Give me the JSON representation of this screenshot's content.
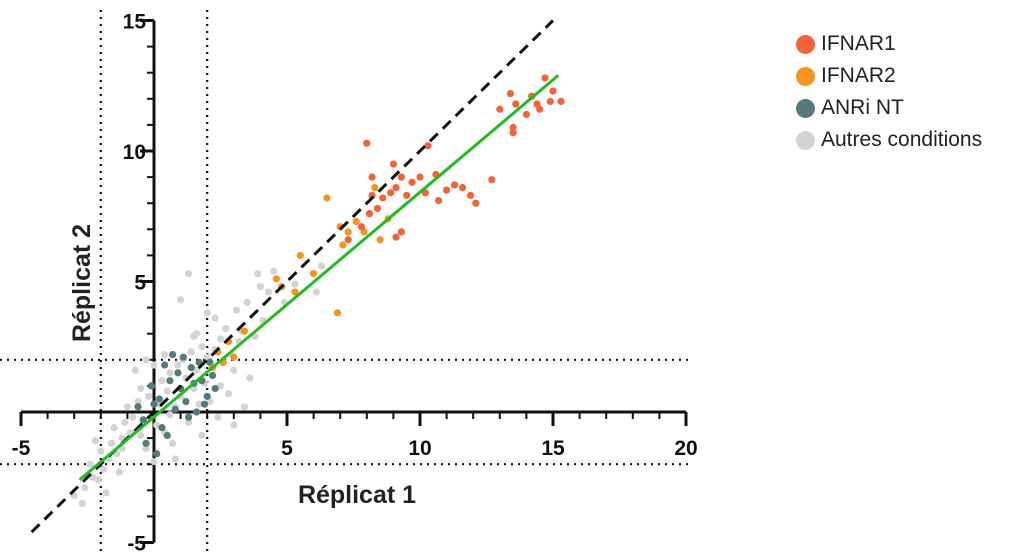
{
  "chart_data": {
    "type": "scatter",
    "xlabel": "Réplicat 1",
    "ylabel": "Réplicat 2",
    "xlim": [
      -5,
      20
    ],
    "ylim": [
      -5,
      15
    ],
    "x_ticks": [
      -5,
      0,
      5,
      10,
      15,
      20
    ],
    "x_tick_labels": [
      "-5",
      "",
      "5",
      "10",
      "15",
      "20"
    ],
    "y_ticks": [
      -5,
      0,
      5,
      10,
      15
    ],
    "y_tick_labels": [
      "-5",
      "",
      "5",
      "10",
      "15"
    ],
    "threshold_lines": {
      "x": [
        -2,
        2
      ],
      "y": [
        -2,
        2
      ]
    },
    "identity_line": {
      "slope": 1,
      "intercept": 0,
      "color": "#111111",
      "style": "dashed"
    },
    "fit_line": {
      "x": [
        -2.8,
        15.2
      ],
      "y": [
        -2.6,
        12.9
      ],
      "color": "#22bb22"
    },
    "series": [
      {
        "name": "Autres conditions",
        "color": "#d3d3d3",
        "points": [
          [
            -3.0,
            -3.2
          ],
          [
            -2.6,
            -2.9
          ],
          [
            -2.3,
            -2.5
          ],
          [
            -2.1,
            -2.6
          ],
          [
            -2.4,
            -2.0
          ],
          [
            -1.9,
            -2.2
          ],
          [
            -1.7,
            -1.8
          ],
          [
            -2.0,
            -1.5
          ],
          [
            -1.6,
            -1.2
          ],
          [
            -1.4,
            -1.6
          ],
          [
            -1.2,
            -1.0
          ],
          [
            -1.5,
            -0.6
          ],
          [
            -1.1,
            -0.4
          ],
          [
            -0.9,
            -0.8
          ],
          [
            -0.8,
            -0.2
          ],
          [
            -1.0,
            0.2
          ],
          [
            -0.6,
            0.4
          ],
          [
            -0.4,
            -0.3
          ],
          [
            -0.2,
            0.6
          ],
          [
            -0.5,
            0.9
          ],
          [
            -0.1,
            1.0
          ],
          [
            0.1,
            -0.5
          ],
          [
            0.2,
            0.3
          ],
          [
            0.3,
            1.2
          ],
          [
            0.5,
            0.8
          ],
          [
            0.4,
            -0.8
          ],
          [
            0.6,
            1.5
          ],
          [
            0.8,
            0.2
          ],
          [
            0.9,
            1.8
          ],
          [
            1.0,
            0.6
          ],
          [
            1.2,
            1.3
          ],
          [
            1.1,
            2.0
          ],
          [
            1.3,
            -0.4
          ],
          [
            1.5,
            0.9
          ],
          [
            1.4,
            2.3
          ],
          [
            1.6,
            1.6
          ],
          [
            1.7,
            0.3
          ],
          [
            1.8,
            2.5
          ],
          [
            1.9,
            1.1
          ],
          [
            2.0,
            2.1
          ],
          [
            2.1,
            0.4
          ],
          [
            2.2,
            1.4
          ],
          [
            2.3,
            2.4
          ],
          [
            2.4,
            -0.2
          ],
          [
            2.5,
            1.0
          ],
          [
            2.6,
            1.9
          ],
          [
            2.8,
            0.7
          ],
          [
            3.0,
            1.6
          ],
          [
            3.2,
            2.7
          ],
          [
            3.0,
            -0.5
          ],
          [
            3.4,
            0.2
          ],
          [
            3.6,
            1.3
          ],
          [
            2.7,
            3.2
          ],
          [
            2.3,
            3.6
          ],
          [
            2.0,
            3.8
          ],
          [
            1.6,
            3.0
          ],
          [
            3.8,
            2.9
          ],
          [
            3.1,
            3.9
          ],
          [
            3.5,
            4.2
          ],
          [
            4.0,
            4.8
          ],
          [
            4.3,
            4.6
          ],
          [
            3.9,
            5.3
          ],
          [
            4.5,
            5.4
          ],
          [
            4.9,
            4.2
          ],
          [
            5.3,
            4.9
          ],
          [
            6.3,
            5.6
          ],
          [
            6.1,
            4.6
          ],
          [
            1.3,
            5.3
          ],
          [
            1.0,
            4.3
          ],
          [
            -1.3,
            -2.3
          ],
          [
            -1.8,
            -3.1
          ],
          [
            -2.7,
            -3.5
          ],
          [
            -0.3,
            -1.4
          ],
          [
            0.0,
            -1.9
          ],
          [
            0.7,
            -1.2
          ],
          [
            1.8,
            -0.9
          ],
          [
            -0.7,
            1.6
          ],
          [
            0.0,
            1.8
          ],
          [
            0.4,
            2.2
          ],
          [
            -0.3,
            2.0
          ],
          [
            4.1,
            3.5
          ],
          [
            -2.2,
            -1.1
          ],
          [
            0.8,
            -1.8
          ],
          [
            2.9,
            2.2
          ],
          [
            -1.2,
            -1.4
          ],
          [
            -0.5,
            -0.9
          ],
          [
            0.6,
            -0.1
          ],
          [
            1.5,
            2.9
          ],
          [
            2.5,
            2.8
          ],
          [
            3.3,
            3.1
          ]
        ]
      },
      {
        "name": "ANRi NT",
        "color": "#547a7a",
        "points": [
          [
            -0.4,
            -0.3
          ],
          [
            0.2,
            0.5
          ],
          [
            0.6,
            1.2
          ],
          [
            1.0,
            0.9
          ],
          [
            1.4,
            1.7
          ],
          [
            1.8,
            1.2
          ],
          [
            2.0,
            0.6
          ],
          [
            2.1,
            1.9
          ],
          [
            0.3,
            -0.6
          ],
          [
            0.8,
            0.1
          ],
          [
            1.2,
            0.4
          ],
          [
            1.6,
            0.0
          ],
          [
            0.9,
            1.5
          ],
          [
            0.4,
            1.8
          ],
          [
            -0.1,
            1.0
          ],
          [
            0.0,
            0.3
          ],
          [
            1.5,
            1.1
          ],
          [
            2.2,
            1.4
          ],
          [
            0.5,
            -0.9
          ],
          [
            -0.6,
            0.2
          ],
          [
            1.1,
            2.1
          ],
          [
            1.9,
            0.3
          ],
          [
            -0.3,
            -1.2
          ],
          [
            0.1,
            -1.6
          ],
          [
            0.7,
            2.2
          ],
          [
            1.3,
            -0.2
          ],
          [
            1.7,
            1.9
          ],
          [
            2.3,
            0.9
          ]
        ]
      },
      {
        "name": "IFNAR2",
        "color": "#f7931e",
        "points": [
          [
            2.4,
            2.3
          ],
          [
            2.8,
            2.7
          ],
          [
            3.0,
            2.1
          ],
          [
            2.2,
            1.7
          ],
          [
            3.4,
            3.1
          ],
          [
            4.6,
            5.1
          ],
          [
            4.8,
            4.8
          ],
          [
            5.3,
            4.6
          ],
          [
            5.5,
            6.0
          ],
          [
            6.0,
            5.3
          ],
          [
            6.5,
            8.2
          ],
          [
            7.0,
            7.1
          ],
          [
            7.3,
            6.9
          ],
          [
            7.6,
            7.3
          ],
          [
            7.9,
            6.9
          ],
          [
            8.1,
            7.6
          ],
          [
            8.3,
            8.6
          ],
          [
            8.8,
            7.4
          ],
          [
            7.1,
            6.4
          ],
          [
            8.5,
            6.6
          ],
          [
            2.6,
            1.9
          ],
          [
            6.9,
            3.8
          ]
        ]
      },
      {
        "name": "IFNAR1",
        "color": "#f4623a",
        "points": [
          [
            7.3,
            6.6
          ],
          [
            7.8,
            7.1
          ],
          [
            8.1,
            7.6
          ],
          [
            8.2,
            8.3
          ],
          [
            8.4,
            7.8
          ],
          [
            8.6,
            8.2
          ],
          [
            8.9,
            8.4
          ],
          [
            9.1,
            8.6
          ],
          [
            9.3,
            9.0
          ],
          [
            9.0,
            9.5
          ],
          [
            9.5,
            8.3
          ],
          [
            9.7,
            8.8
          ],
          [
            10.0,
            9.0
          ],
          [
            10.2,
            8.4
          ],
          [
            10.3,
            10.2
          ],
          [
            10.6,
            9.1
          ],
          [
            10.7,
            8.1
          ],
          [
            11.0,
            8.5
          ],
          [
            11.3,
            8.7
          ],
          [
            11.6,
            8.6
          ],
          [
            11.9,
            8.3
          ],
          [
            12.7,
            8.9
          ],
          [
            12.1,
            8.0
          ],
          [
            13.0,
            11.6
          ],
          [
            13.4,
            12.2
          ],
          [
            13.5,
            10.9
          ],
          [
            13.6,
            11.8
          ],
          [
            14.2,
            12.1
          ],
          [
            14.4,
            11.8
          ],
          [
            14.5,
            11.6
          ],
          [
            14.7,
            12.8
          ],
          [
            14.9,
            11.9
          ],
          [
            15.0,
            12.3
          ],
          [
            15.3,
            11.9
          ],
          [
            8.2,
            9.0
          ],
          [
            9.3,
            6.9
          ],
          [
            8.0,
            10.3
          ],
          [
            14.0,
            11.4
          ],
          [
            13.5,
            10.7
          ],
          [
            9.1,
            6.7
          ]
        ]
      }
    ],
    "legend": {
      "placement": "top-right",
      "items": [
        {
          "label": "IFNAR1",
          "color": "#f4623a"
        },
        {
          "label": "IFNAR2",
          "color": "#f7931e"
        },
        {
          "label": "ANRi NT",
          "color": "#547a7a"
        },
        {
          "label": "Autres conditions",
          "color": "#d3d3d3"
        }
      ]
    }
  }
}
